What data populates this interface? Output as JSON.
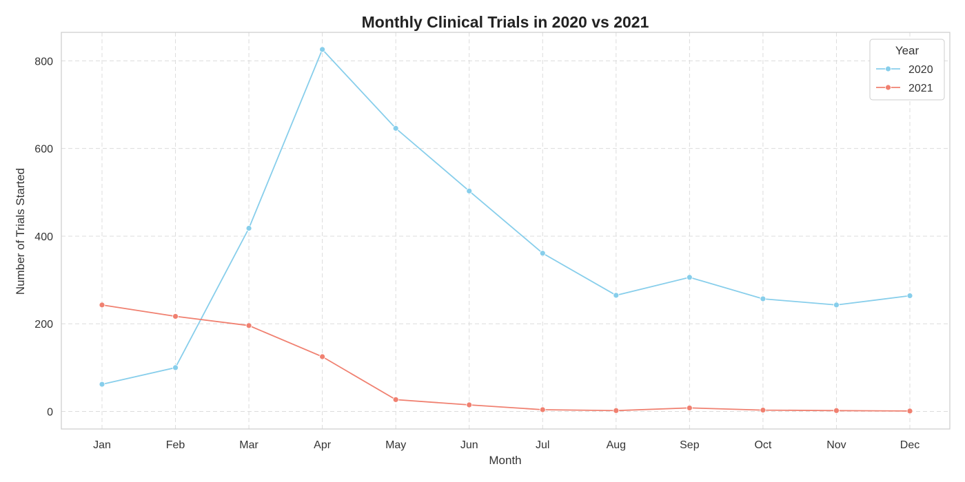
{
  "chart_data": {
    "type": "line",
    "title": "Monthly Clinical Trials in 2020 vs 2021",
    "xlabel": "Month",
    "ylabel": "Number of Trials Started",
    "categories": [
      "Jan",
      "Feb",
      "Mar",
      "Apr",
      "May",
      "Jun",
      "Jul",
      "Aug",
      "Sep",
      "Oct",
      "Nov",
      "Dec"
    ],
    "ylim": [
      -40,
      865
    ],
    "yticks": [
      0,
      200,
      400,
      600,
      800
    ],
    "grid": true,
    "legend": {
      "title": "Year",
      "position": "top-right"
    },
    "series": [
      {
        "name": "2020",
        "color": "#87ceeb",
        "values": [
          62,
          100,
          418,
          826,
          646,
          503,
          361,
          265,
          306,
          257,
          243,
          264
        ]
      },
      {
        "name": "2021",
        "color": "#f08070",
        "values": [
          243,
          217,
          196,
          125,
          27,
          15,
          4,
          2,
          8,
          3,
          2,
          1
        ]
      }
    ]
  }
}
